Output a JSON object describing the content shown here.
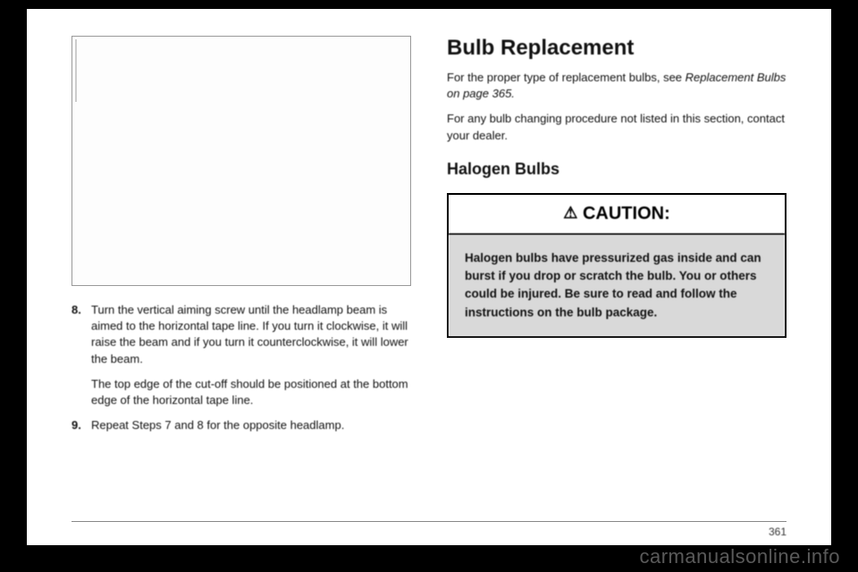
{
  "left": {
    "step8_num": "8.",
    "step8": "Turn the vertical aiming screw until the headlamp beam is aimed to the horizontal tape line. If you turn it clockwise, it will raise the beam and if you turn it counterclockwise, it will lower the beam.",
    "step8_sub": "The top edge of the cut-off should be positioned at the bottom edge of the horizontal tape line.",
    "step9_num": "9.",
    "step9": "Repeat Steps 7 and 8 for the opposite headlamp."
  },
  "right": {
    "h1": "Bulb Replacement",
    "p1a": "For the proper type of replacement bulbs, see ",
    "p1b": "Replacement Bulbs on page 365.",
    "p2": "For any bulb changing procedure not listed in this section, contact your dealer.",
    "h2": "Halogen Bulbs",
    "caution_label": "CAUTION:",
    "caution_body": "Halogen bulbs have pressurized gas inside and can burst if you drop or scratch the bulb. You or others could be injured. Be sure to read and follow the instructions on the bulb package."
  },
  "page_number": "361",
  "watermark": "carmanualsonline.info"
}
